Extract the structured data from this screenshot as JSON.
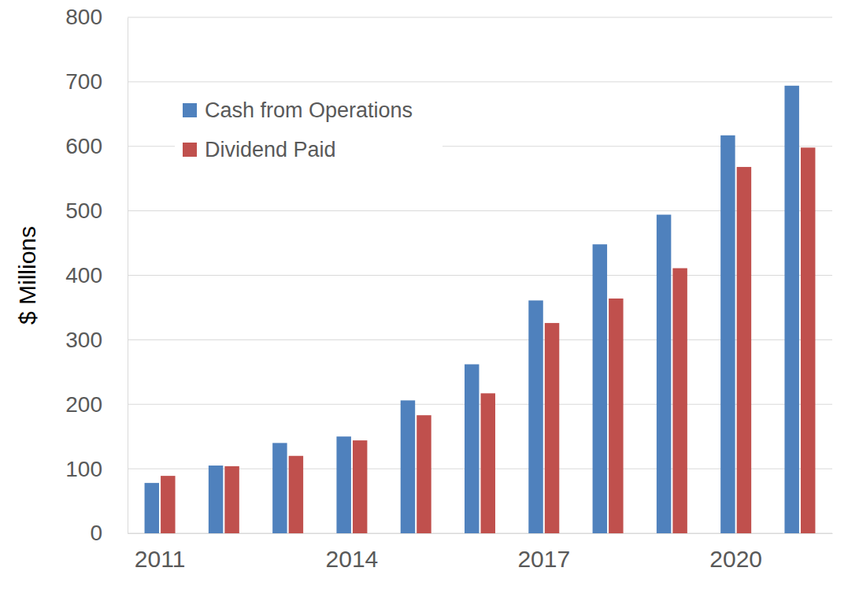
{
  "chart_data": {
    "type": "bar",
    "y_label": "$ Millions",
    "categories": [
      "2011",
      null,
      null,
      "2014",
      null,
      null,
      "2017",
      null,
      null,
      "2020",
      null
    ],
    "series": [
      {
        "name": "Cash from Operations",
        "color": "#4f81bd",
        "values": [
          78,
          105,
          140,
          150,
          206,
          262,
          361,
          448,
          494,
          617,
          694
        ]
      },
      {
        "name": "Dividend Paid",
        "color": "#c0504d",
        "values": [
          89,
          104,
          120,
          144,
          183,
          217,
          326,
          364,
          411,
          568,
          598
        ]
      }
    ],
    "ylim": [
      0,
      800
    ],
    "yticks": [
      0,
      100,
      200,
      300,
      400,
      500,
      600,
      700,
      800
    ],
    "grid": true,
    "legend": "upper left"
  }
}
